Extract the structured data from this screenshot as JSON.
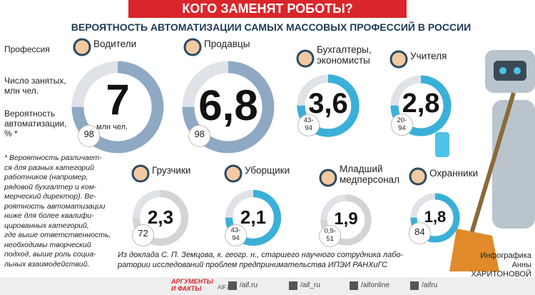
{
  "header": {
    "title": "КОГО ЗАМЕНЯТ РОБОТЫ?",
    "subtitle": "ВЕРОЯТНОСТЬ АВТОМАТИЗАЦИИ САМЫХ МАССОВЫХ ПРОФЕССИЙ В РОССИИ"
  },
  "legend": {
    "profession": "Профессия",
    "employed": "Число занятых,\nмлн чел.",
    "probability": "Вероятность\nавтоматизации,\n% *"
  },
  "professions": [
    {
      "name": "Водители",
      "employed": "7",
      "unit": "млн чел.",
      "probability": "98"
    },
    {
      "name": "Продавцы",
      "employed": "6,8",
      "probability": "98"
    },
    {
      "name": "Бухгалтеры,\nэкономисты",
      "employed": "3,6",
      "probability": "43-\n94"
    },
    {
      "name": "Учителя",
      "employed": "2,8",
      "probability": "20-\n94"
    },
    {
      "name": "Грузчики",
      "employed": "2,3",
      "probability": "72"
    },
    {
      "name": "Уборщики",
      "employed": "2,1",
      "probability": "43-\n94"
    },
    {
      "name": "Младший\nмедперсонал",
      "employed": "1,9",
      "probability": "0,9-\n51"
    },
    {
      "name": "Охранники",
      "employed": "1,8",
      "probability": "84"
    }
  ],
  "footnote": "* Вероятность различает-\nся для разных категорий\nработников (например,\nрядовой бухгалтер и ком-\nмерческий директор). Ве-\nроятность автоматизации\nниже для более квалифи-\nцированных категорий,\nгде выше ответственность,\nнеобходимы творческий\nподход, выше роль социа-\nльных взаимодействий.",
  "source": "Из доклада С. П. Земцова, к. геогр. н., старшего научного сотрудника лабо-\nратории исследований проблем предпринимательства ИПЭИ РАНХиГС",
  "credit": "Инфографика\nАнны ХАРИТОНОВОЙ",
  "footer": {
    "logo": "АРГУМЕНТЫ\nИ ФАКТЫ",
    "site": "AIF.RU",
    "links": [
      "/aif.ru",
      "/aif_ru",
      "/aifonline",
      "/aifru"
    ]
  }
}
